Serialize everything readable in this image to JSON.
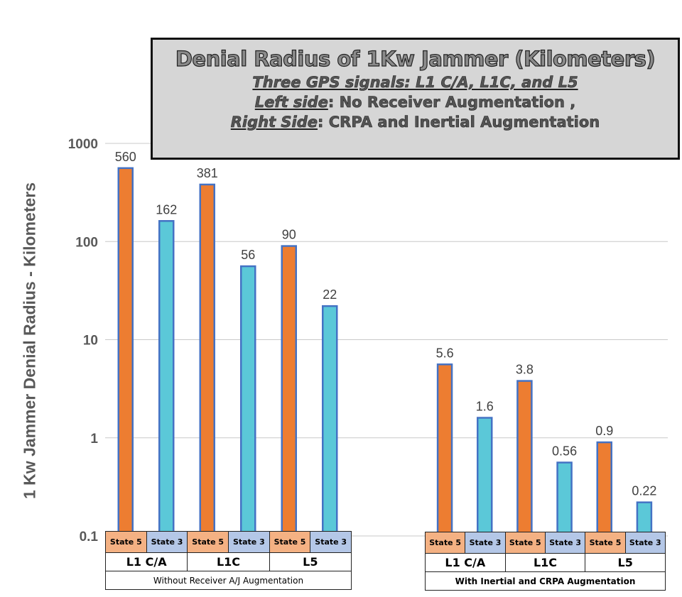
{
  "title_box": {
    "title": "Denial Radius of 1Kw Jammer (Kilometers)",
    "line2": "Three GPS signals: L1 C/A, L1C, and L5",
    "line3_label": "Left side",
    "line3_text": ": No Receiver Augmentation ,",
    "line4_label": "Right Side",
    "line4_text": ": CRPA and Inertial Augmentation"
  },
  "chart_data": {
    "type": "bar",
    "title": "Denial Radius of 1Kw Jammer (Kilometers)",
    "ylabel": "1 Kw Jammer Denial Radius - Kilometers",
    "yscale": "log",
    "ylim": [
      0.1,
      1000
    ],
    "yticks": [
      "0.1",
      "1",
      "10",
      "100",
      "1000"
    ],
    "grid": true,
    "groups": [
      {
        "caption": "Without Receiver A/J Augmentation",
        "signals": [
          "L1 C/A",
          "L1C",
          "L5"
        ],
        "states": [
          "State 5",
          "State 3",
          "State 5",
          "State 3",
          "State 5",
          "State 3"
        ],
        "values": [
          560,
          162,
          381,
          56,
          90,
          22
        ],
        "labels": [
          "560",
          "162",
          "381",
          "56",
          "90",
          "22"
        ]
      },
      {
        "caption": "With Inertial and CRPA Augmentation",
        "signals": [
          "L1 C/A",
          "L1C",
          "L5"
        ],
        "states": [
          "State 5",
          "State 3",
          "State 5",
          "State 3",
          "State 5",
          "State 3"
        ],
        "values": [
          5.6,
          1.6,
          3.8,
          0.56,
          0.9,
          0.22
        ],
        "labels": [
          "5.6",
          "1.6",
          "3.8",
          "0.56",
          "0.9",
          "0.22"
        ]
      }
    ],
    "colors": {
      "State 5": "#ED7D31",
      "State 3": "#5BC8D8",
      "bar_border": "#4472C4",
      "state5_cell": "#F4B183",
      "state3_cell": "#B4C7E7"
    }
  }
}
